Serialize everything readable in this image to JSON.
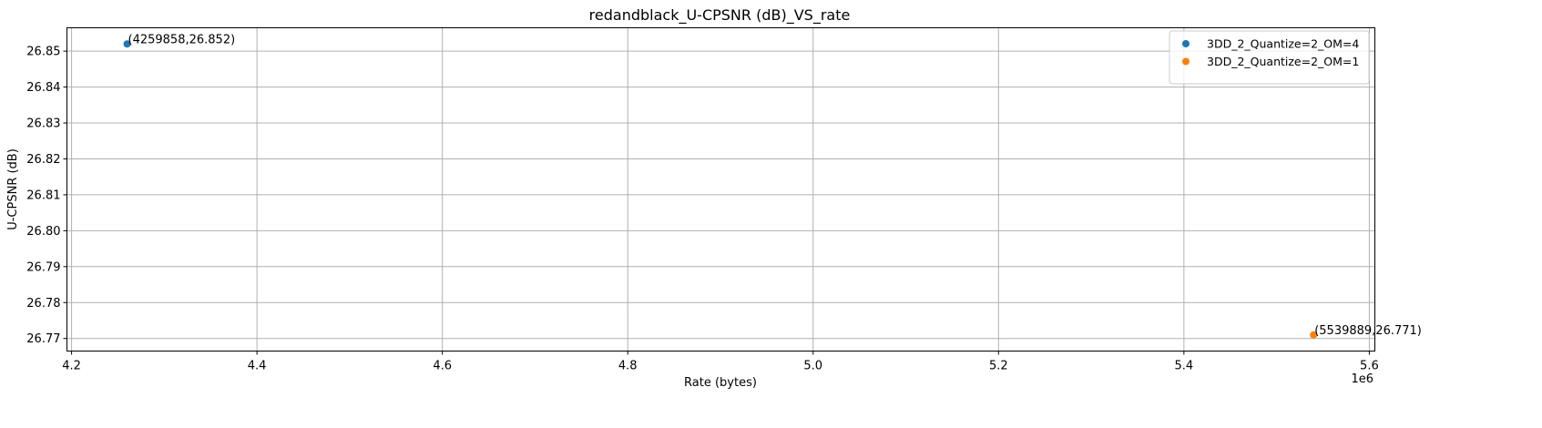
{
  "chart_data": {
    "type": "scatter",
    "title": "redandblack_U-CPSNR (dB)_VS_rate",
    "xlabel": "Rate (bytes)",
    "ylabel": "U-CPSNR (dB)",
    "x_offset_label": "1e6",
    "xlim": [
      4195000,
      5606000
    ],
    "ylim": [
      26.7665,
      26.8565
    ],
    "x_ticks": [
      {
        "value": 4200000,
        "label": "4.2"
      },
      {
        "value": 4400000,
        "label": "4.4"
      },
      {
        "value": 4600000,
        "label": "4.6"
      },
      {
        "value": 4800000,
        "label": "4.8"
      },
      {
        "value": 5000000,
        "label": "5.0"
      },
      {
        "value": 5200000,
        "label": "5.2"
      },
      {
        "value": 5400000,
        "label": "5.4"
      },
      {
        "value": 5600000,
        "label": "5.6"
      }
    ],
    "y_ticks": [
      {
        "value": 26.77,
        "label": "26.77"
      },
      {
        "value": 26.78,
        "label": "26.78"
      },
      {
        "value": 26.79,
        "label": "26.79"
      },
      {
        "value": 26.8,
        "label": "26.80"
      },
      {
        "value": 26.81,
        "label": "26.81"
      },
      {
        "value": 26.82,
        "label": "26.82"
      },
      {
        "value": 26.83,
        "label": "26.83"
      },
      {
        "value": 26.84,
        "label": "26.84"
      },
      {
        "value": 26.85,
        "label": "26.85"
      }
    ],
    "grid": true,
    "legend_position": "top-right",
    "series": [
      {
        "name": "3DD_2_Quantize=2_OM=4",
        "color": "#1f77b4",
        "points": [
          {
            "x": 4259858,
            "y": 26.852,
            "label": "(4259858,26.852)"
          }
        ]
      },
      {
        "name": "3DD_2_Quantize=2_OM=1",
        "color": "#ff7f0e",
        "points": [
          {
            "x": 5539889,
            "y": 26.771,
            "label": "(5539889,26.771)"
          }
        ]
      }
    ]
  }
}
